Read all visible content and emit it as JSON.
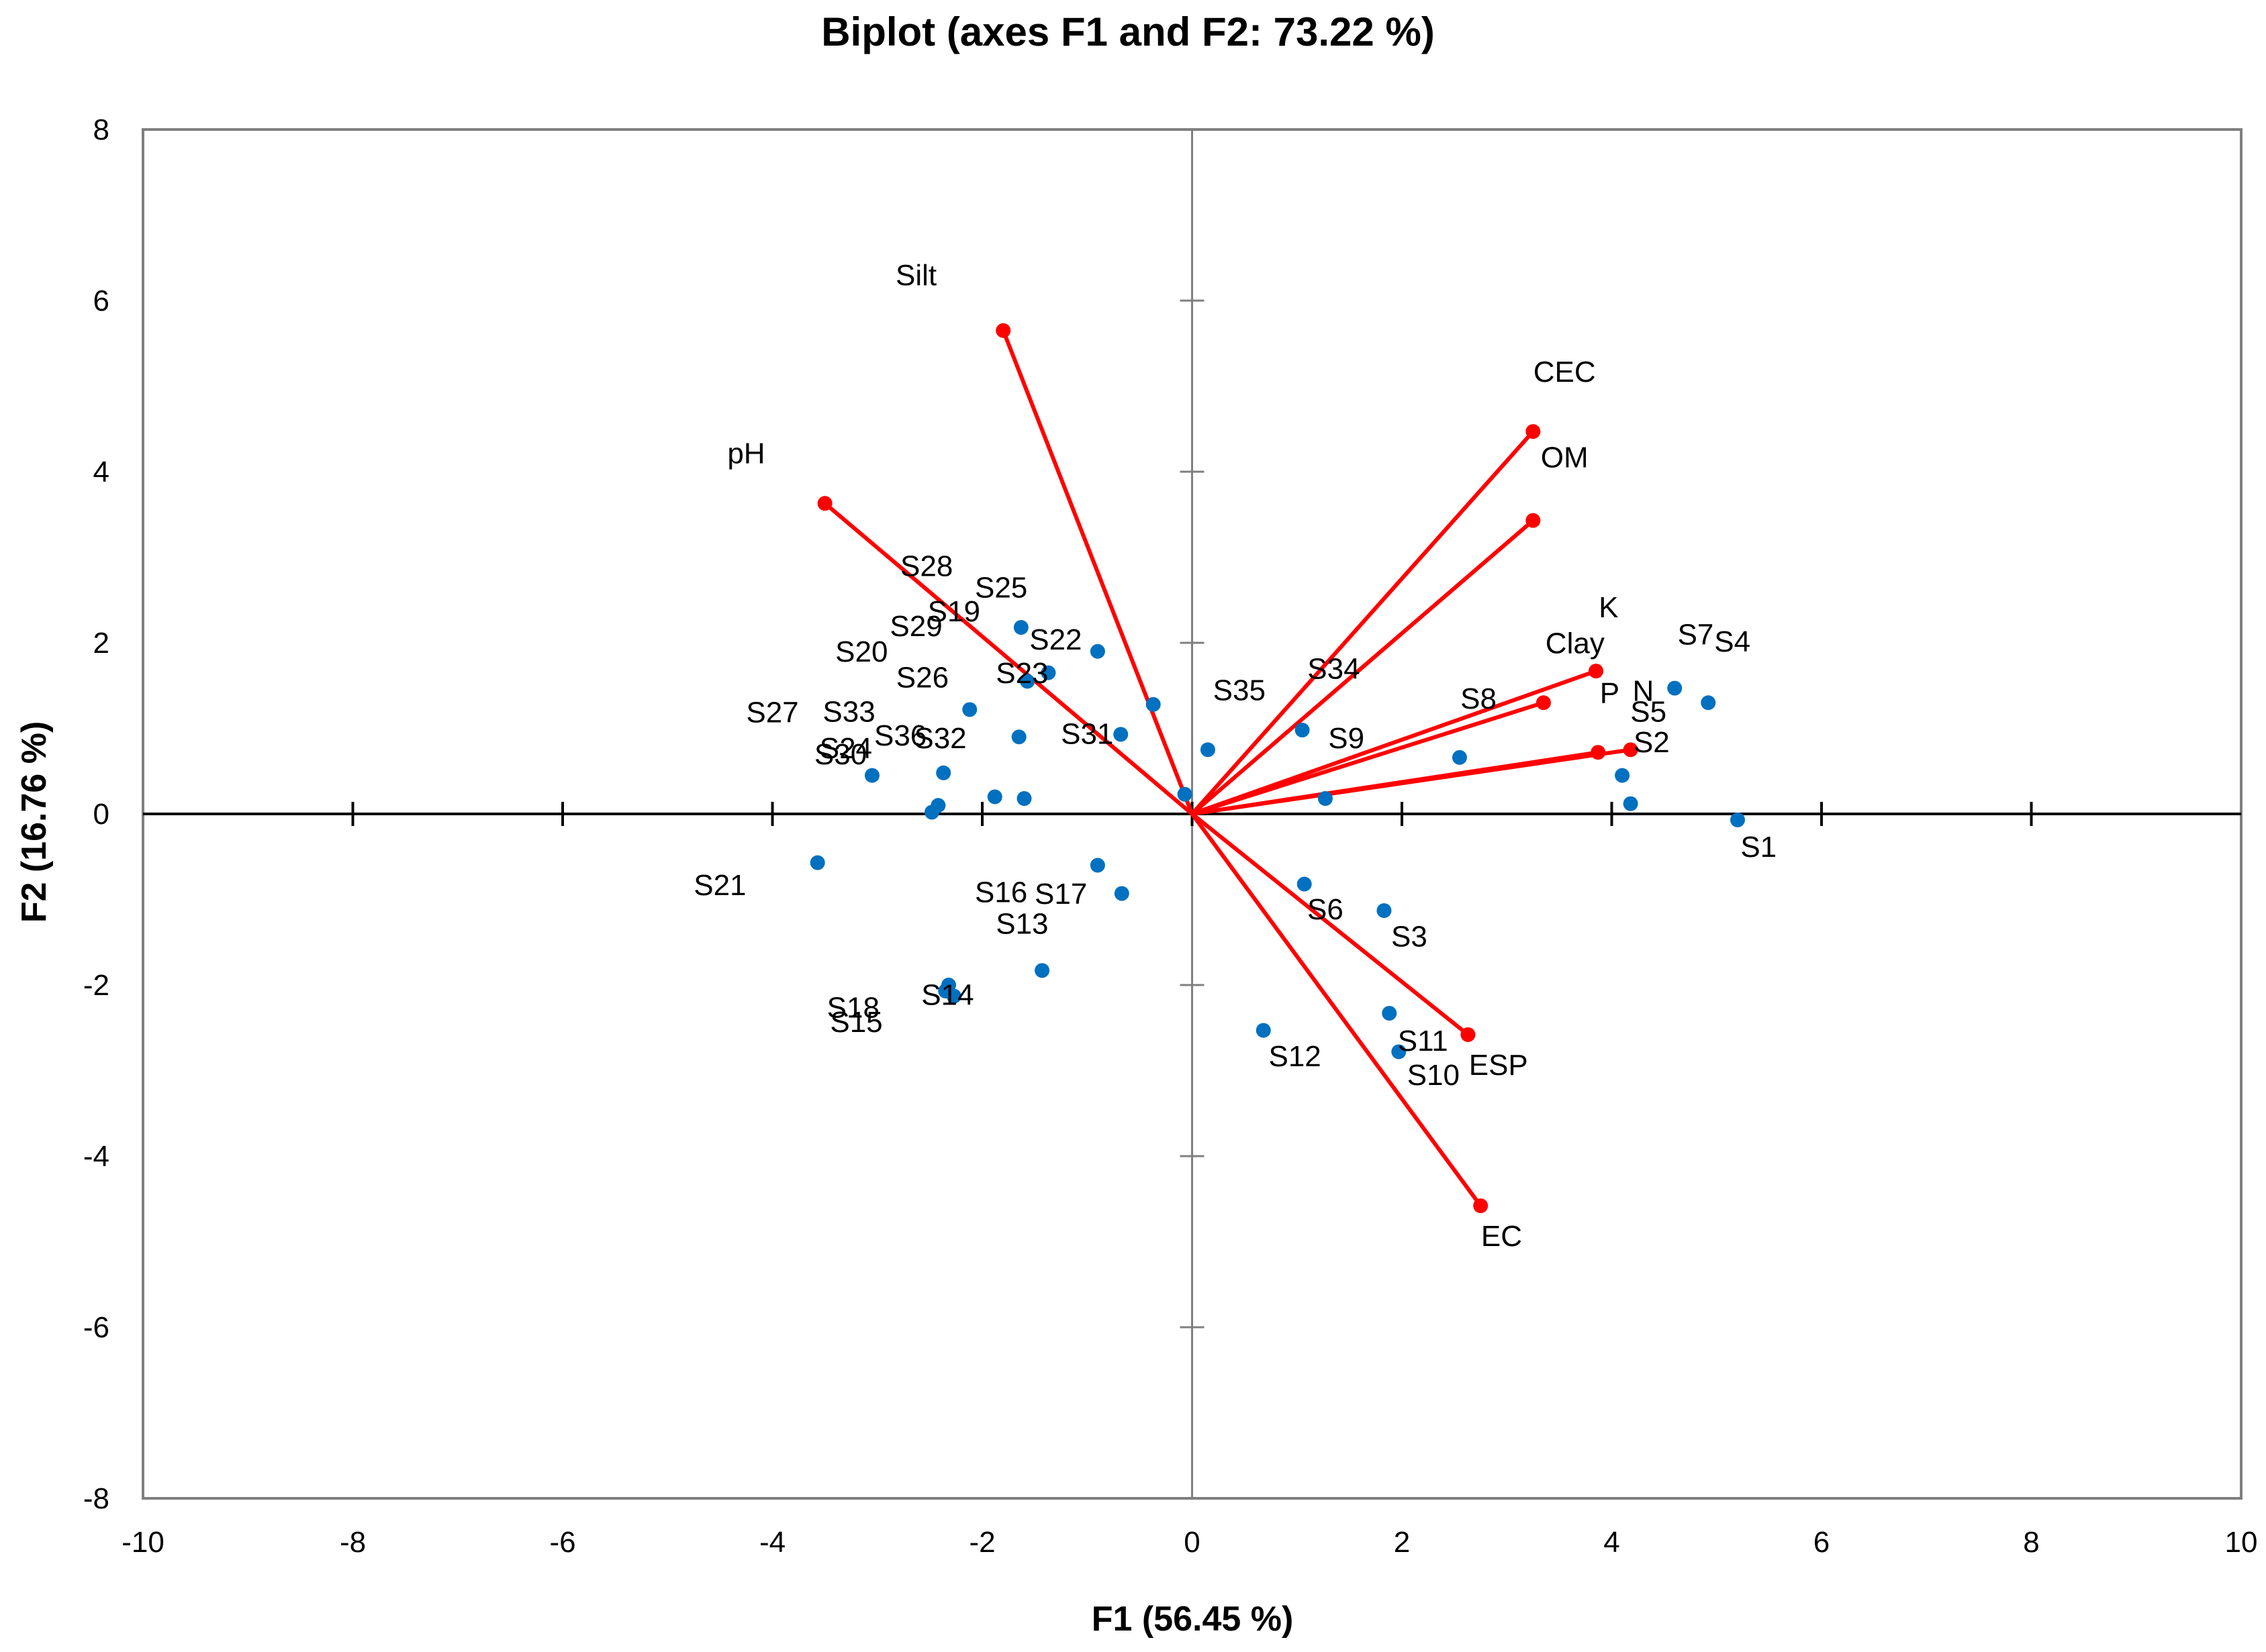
{
  "chart_data": {
    "type": "scatter",
    "subtype": "pca-biplot",
    "title": "Biplot (axes F1 and F2: 73.22 %)",
    "xlabel": "F1 (56.45 %)",
    "ylabel": "F2 (16.76 %)",
    "xlim": [
      -10,
      10
    ],
    "ylim": [
      -8,
      8
    ],
    "xticks": [
      -10,
      -8,
      -6,
      -4,
      -2,
      0,
      2,
      4,
      6,
      8,
      10
    ],
    "yticks": [
      -8,
      -6,
      -4,
      -2,
      0,
      2,
      4,
      6,
      8
    ],
    "xtick_labels": [
      "-10",
      "-8",
      "-6",
      "-4",
      "-2",
      "0",
      "2",
      "4",
      "6",
      "8",
      "10"
    ],
    "ytick_labels": [
      "-8",
      "-6",
      "-4",
      "-2",
      "0",
      "2",
      "4",
      "6",
      "8"
    ],
    "grid": false,
    "colors": {
      "variables": "#ff0000",
      "observations": "#0070c0",
      "frame": "#7f7f7f",
      "axes": "#7f7f7f",
      "zero_line": "#000000"
    },
    "variables": [
      {
        "name": "Silt",
        "x": -1.8,
        "y": 5.65,
        "label_x": -2.63,
        "label_y": 6.18
      },
      {
        "name": "pH",
        "x": -3.5,
        "y": 3.63,
        "label_x": -4.25,
        "label_y": 4.1
      },
      {
        "name": "CEC",
        "x": 3.25,
        "y": 4.47,
        "label_x": 3.55,
        "label_y": 5.05
      },
      {
        "name": "OM",
        "x": 3.25,
        "y": 3.43,
        "label_x": 3.55,
        "label_y": 4.05
      },
      {
        "name": "K",
        "x": 3.85,
        "y": 1.67,
        "label_x": 3.97,
        "label_y": 2.3
      },
      {
        "name": "Clay",
        "x": 3.35,
        "y": 1.3,
        "label_x": 3.65,
        "label_y": 1.88
      },
      {
        "name": "P",
        "x": 3.87,
        "y": 0.72,
        "label_x": 3.98,
        "label_y": 1.3
      },
      {
        "name": "N",
        "x": 4.18,
        "y": 0.75,
        "label_x": 4.3,
        "label_y": 1.32
      },
      {
        "name": "ESP",
        "x": 2.63,
        "y": -2.58,
        "label_x": 2.92,
        "label_y": -3.05
      },
      {
        "name": "EC",
        "x": 2.75,
        "y": -4.58,
        "label_x": 2.95,
        "label_y": -5.05
      }
    ],
    "observations": [
      {
        "name": "S1",
        "x": 5.2,
        "y": -0.07,
        "label_x": 5.4,
        "label_y": -0.5
      },
      {
        "name": "S2",
        "x": 4.18,
        "y": 0.12,
        "label_x": 4.38,
        "label_y": 0.72
      },
      {
        "name": "S3",
        "x": 1.83,
        "y": -1.13,
        "label_x": 2.07,
        "label_y": -1.55
      },
      {
        "name": "S4",
        "x": 4.92,
        "y": 1.3,
        "label_x": 5.15,
        "label_y": 1.9
      },
      {
        "name": "S5",
        "x": 4.1,
        "y": 0.45,
        "label_x": 4.35,
        "label_y": 1.08
      },
      {
        "name": "S6",
        "x": 1.07,
        "y": -0.82,
        "label_x": 1.27,
        "label_y": -1.23
      },
      {
        "name": "S7",
        "x": 4.6,
        "y": 1.47,
        "label_x": 4.8,
        "label_y": 1.98
      },
      {
        "name": "S8",
        "x": 2.55,
        "y": 0.66,
        "label_x": 2.73,
        "label_y": 1.23
      },
      {
        "name": "S9",
        "x": 1.27,
        "y": 0.18,
        "label_x": 1.47,
        "label_y": 0.77
      },
      {
        "name": "S10",
        "x": 1.97,
        "y": -2.78,
        "label_x": 2.3,
        "label_y": -3.17
      },
      {
        "name": "S11",
        "x": 1.88,
        "y": -2.33,
        "label_x": 2.2,
        "label_y": -2.77
      },
      {
        "name": "S12",
        "x": 0.68,
        "y": -2.53,
        "label_x": 0.98,
        "label_y": -2.95
      },
      {
        "name": "S13",
        "x": -1.43,
        "y": -1.83,
        "label_x": -1.62,
        "label_y": -1.4
      },
      {
        "name": "S14",
        "x": -2.32,
        "y": -2.0,
        "label_x": -2.33,
        "label_y": -2.23
      },
      {
        "name": "S15",
        "x": -2.27,
        "y": -2.13,
        "label_x": -3.2,
        "label_y": -2.55
      },
      {
        "name": "S16",
        "x": -0.9,
        "y": -0.6,
        "label_x": -1.82,
        "label_y": -1.03
      },
      {
        "name": "S17",
        "x": -0.67,
        "y": -0.93,
        "label_x": -1.25,
        "label_y": -1.05
      },
      {
        "name": "S18",
        "x": -2.35,
        "y": -2.07,
        "label_x": -3.23,
        "label_y": -2.38
      },
      {
        "name": "S19",
        "x": -2.48,
        "y": 0.02,
        "label_x": -2.27,
        "label_y": 2.25
      },
      {
        "name": "S20",
        "x": -2.42,
        "y": 0.1,
        "label_x": -3.15,
        "label_y": 1.78
      },
      {
        "name": "S21",
        "x": -3.57,
        "y": -0.57,
        "label_x": -4.5,
        "label_y": -0.95
      },
      {
        "name": "S22",
        "x": -0.9,
        "y": 1.9,
        "label_x": -1.3,
        "label_y": 1.92
      },
      {
        "name": "S23",
        "x": -1.37,
        "y": 1.65,
        "label_x": -1.62,
        "label_y": 1.53
      },
      {
        "name": "S24",
        "x": -2.37,
        "y": 0.48,
        "label_x": -3.3,
        "label_y": 0.65
      },
      {
        "name": "S25",
        "x": -1.63,
        "y": 2.18,
        "label_x": -1.82,
        "label_y": 2.53
      },
      {
        "name": "S26",
        "x": -2.12,
        "y": 1.22,
        "label_x": -2.57,
        "label_y": 1.48
      },
      {
        "name": "S27",
        "x": -1.65,
        "y": 0.9,
        "label_x": -4.0,
        "label_y": 1.07
      },
      {
        "name": "S28",
        "x": -1.57,
        "y": 1.55,
        "label_x": -2.53,
        "label_y": 2.78
      },
      {
        "name": "S29",
        "x": -1.88,
        "y": 0.2,
        "label_x": -2.63,
        "label_y": 2.08
      },
      {
        "name": "S30",
        "x": -3.05,
        "y": 0.45,
        "label_x": -3.35,
        "label_y": 0.58
      },
      {
        "name": "S31",
        "x": -0.68,
        "y": 0.93,
        "label_x": -1.0,
        "label_y": 0.82
      },
      {
        "name": "S32",
        "x": -1.6,
        "y": 0.18,
        "label_x": -2.4,
        "label_y": 0.77
      },
      {
        "name": "S33",
        "x": -0.37,
        "y": 1.28,
        "label_x": -3.27,
        "label_y": 1.08
      },
      {
        "name": "S34",
        "x": 1.05,
        "y": 0.98,
        "label_x": 1.35,
        "label_y": 1.58
      },
      {
        "name": "S35",
        "x": 0.15,
        "y": 0.75,
        "label_x": 0.45,
        "label_y": 1.33
      },
      {
        "name": "S36",
        "x": -0.07,
        "y": 0.23,
        "label_x": -2.78,
        "label_y": 0.8
      }
    ]
  }
}
